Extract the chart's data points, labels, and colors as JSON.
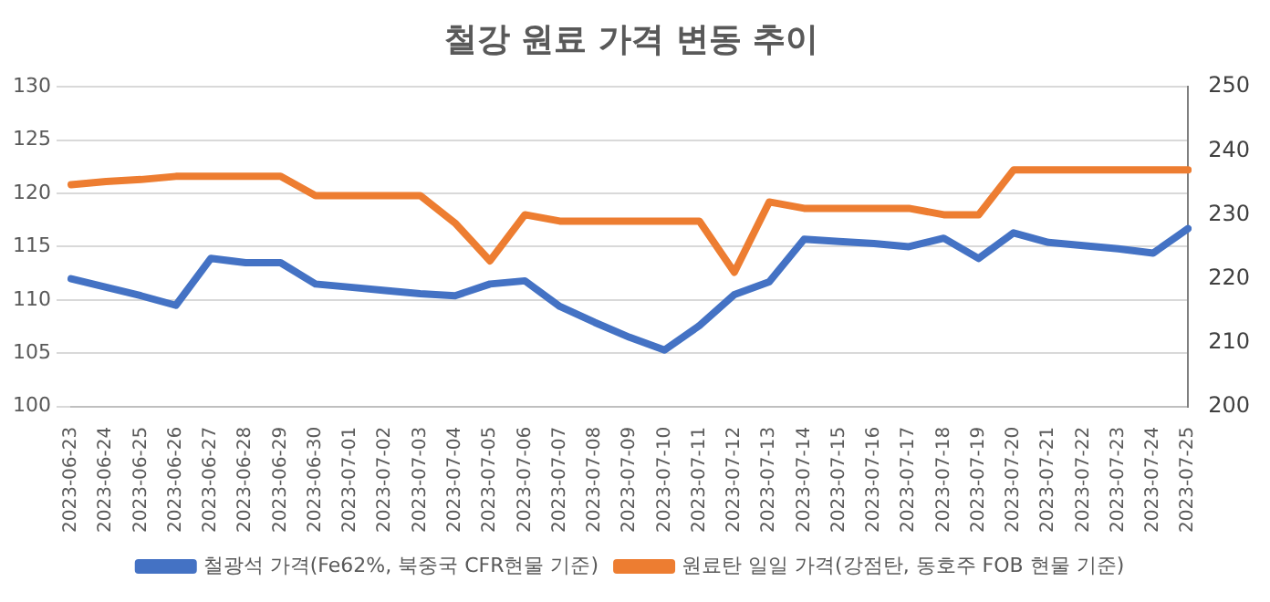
{
  "chart_data": {
    "type": "line",
    "title": "철강 원료 가격 변동 추이",
    "categories": [
      "2023-06-23",
      "2023-06-24",
      "2023-06-25",
      "2023-06-26",
      "2023-06-27",
      "2023-06-28",
      "2023-06-29",
      "2023-06-30",
      "2023-07-01",
      "2023-07-02",
      "2023-07-03",
      "2023-07-04",
      "2023-07-05",
      "2023-07-06",
      "2023-07-07",
      "2023-07-08",
      "2023-07-09",
      "2023-07-10",
      "2023-07-11",
      "2023-07-12",
      "2023-07-13",
      "2023-07-14",
      "2023-07-15",
      "2023-07-16",
      "2023-07-17",
      "2023-07-18",
      "2023-07-19",
      "2023-07-20",
      "2023-07-21",
      "2023-07-22",
      "2023-07-23",
      "2023-07-24",
      "2023-07-25"
    ],
    "series": [
      {
        "name": "철광석 가격(Fe62%, 북중국 CFR현물 기준)",
        "color": "#4472c4",
        "values": [
          112,
          111.2,
          110.4,
          109.5,
          113.9,
          113.5,
          113.5,
          111.5,
          111.2,
          110.9,
          110.6,
          110.4,
          111.5,
          111.8,
          109.4,
          107.9,
          106.5,
          105.3,
          107.6,
          110.5,
          111.7,
          115.7,
          115.5,
          115.3,
          115.0,
          115.8,
          113.9,
          116.3,
          115.4,
          115.1,
          114.8,
          114.4,
          116.7
        ]
      },
      {
        "name": "원료탄 일일 가격(강점탄, 동호주 FOB 현물 기준)",
        "color": "#ed7d31",
        "axis": "y2",
        "values": [
          234.7,
          235.2,
          235.5,
          236,
          236,
          236,
          236,
          233,
          233,
          233,
          233,
          228.7,
          222.8,
          230,
          229,
          229,
          229,
          229,
          229,
          221,
          232,
          231,
          231,
          231,
          231,
          230,
          230,
          237,
          237,
          237,
          237,
          237,
          237
        ]
      }
    ],
    "ylim": [
      100,
      130
    ],
    "yticks": [
      100,
      105,
      110,
      115,
      120,
      125,
      130
    ],
    "y2lim": [
      200,
      250
    ],
    "y2ticks": [
      200,
      210,
      220,
      230,
      240,
      250
    ],
    "grid": "y",
    "legend": "bottom",
    "marker": "none",
    "line_style": "solid"
  }
}
